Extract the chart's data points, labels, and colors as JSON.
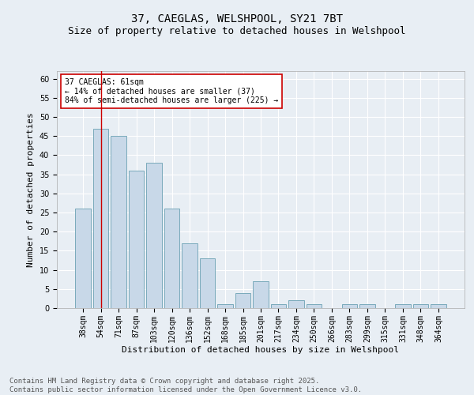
{
  "title": "37, CAEGLAS, WELSHPOOL, SY21 7BT",
  "subtitle": "Size of property relative to detached houses in Welshpool",
  "xlabel": "Distribution of detached houses by size in Welshpool",
  "ylabel": "Number of detached properties",
  "categories": [
    "38sqm",
    "54sqm",
    "71sqm",
    "87sqm",
    "103sqm",
    "120sqm",
    "136sqm",
    "152sqm",
    "168sqm",
    "185sqm",
    "201sqm",
    "217sqm",
    "234sqm",
    "250sqm",
    "266sqm",
    "283sqm",
    "299sqm",
    "315sqm",
    "331sqm",
    "348sqm",
    "364sqm"
  ],
  "values": [
    26,
    47,
    45,
    36,
    38,
    26,
    17,
    13,
    1,
    4,
    7,
    1,
    2,
    1,
    0,
    1,
    1,
    0,
    1,
    1,
    1
  ],
  "bar_color": "#c8d8e8",
  "bar_edge_color": "#7aaabb",
  "ylim": [
    0,
    62
  ],
  "yticks": [
    0,
    5,
    10,
    15,
    20,
    25,
    30,
    35,
    40,
    45,
    50,
    55,
    60
  ],
  "vline_x": 1,
  "vline_color": "#cc0000",
  "annotation_text": "37 CAEGLAS: 61sqm\n← 14% of detached houses are smaller (37)\n84% of semi-detached houses are larger (225) →",
  "annotation_box_color": "#ffffff",
  "annotation_box_edge": "#cc0000",
  "footer_line1": "Contains HM Land Registry data © Crown copyright and database right 2025.",
  "footer_line2": "Contains public sector information licensed under the Open Government Licence v3.0.",
  "background_color": "#e8eef4",
  "plot_bg_color": "#e8eef4",
  "grid_color": "#ffffff",
  "title_fontsize": 10,
  "subtitle_fontsize": 9,
  "axis_label_fontsize": 8,
  "tick_fontsize": 7,
  "annotation_fontsize": 7,
  "footer_fontsize": 6.5
}
